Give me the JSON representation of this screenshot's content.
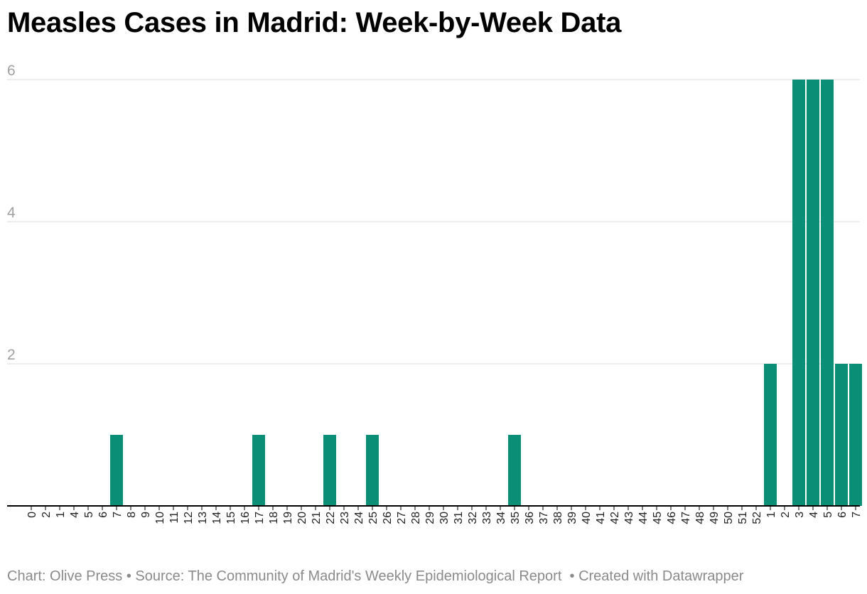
{
  "title": "Measles Cases in Madrid: Week-by-Week Data",
  "footer": {
    "chart": "Chart: Olive Press",
    "source": "Source: The Community of Madrid's Weekly Epidemiological Report",
    "created": "Created with Datawrapper"
  },
  "chart_data": {
    "type": "bar",
    "title": "Measles Cases in Madrid: Week-by-Week Data",
    "xlabel": "",
    "ylabel": "",
    "categories": [
      "0",
      "2",
      "1",
      "4",
      "5",
      "6",
      "7",
      "8",
      "9",
      "10",
      "11",
      "12",
      "13",
      "14",
      "15",
      "16",
      "17",
      "18",
      "19",
      "20",
      "21",
      "22",
      "23",
      "24",
      "25",
      "26",
      "27",
      "28",
      "29",
      "30",
      "31",
      "32",
      "33",
      "34",
      "35",
      "36",
      "37",
      "38",
      "39",
      "40",
      "41",
      "42",
      "43",
      "44",
      "45",
      "46",
      "47",
      "48",
      "49",
      "50",
      "51",
      "52",
      "1",
      "2",
      "3",
      "4",
      "5",
      "6",
      "7"
    ],
    "values": [
      0,
      0,
      0,
      0,
      0,
      0,
      1,
      0,
      0,
      0,
      0,
      0,
      0,
      0,
      0,
      0,
      1,
      0,
      0,
      0,
      0,
      1,
      0,
      0,
      1,
      0,
      0,
      0,
      0,
      0,
      0,
      0,
      0,
      0,
      1,
      0,
      0,
      0,
      0,
      0,
      0,
      0,
      0,
      0,
      0,
      0,
      0,
      0,
      0,
      0,
      0,
      0,
      2,
      0,
      6,
      6,
      6,
      2,
      2
    ],
    "yticks": [
      2,
      4,
      6
    ],
    "ylim": [
      0,
      6
    ],
    "grid": true,
    "colors": {
      "bar": "#0a8f76",
      "grid": "#dddddd",
      "axis": "#000000"
    }
  }
}
